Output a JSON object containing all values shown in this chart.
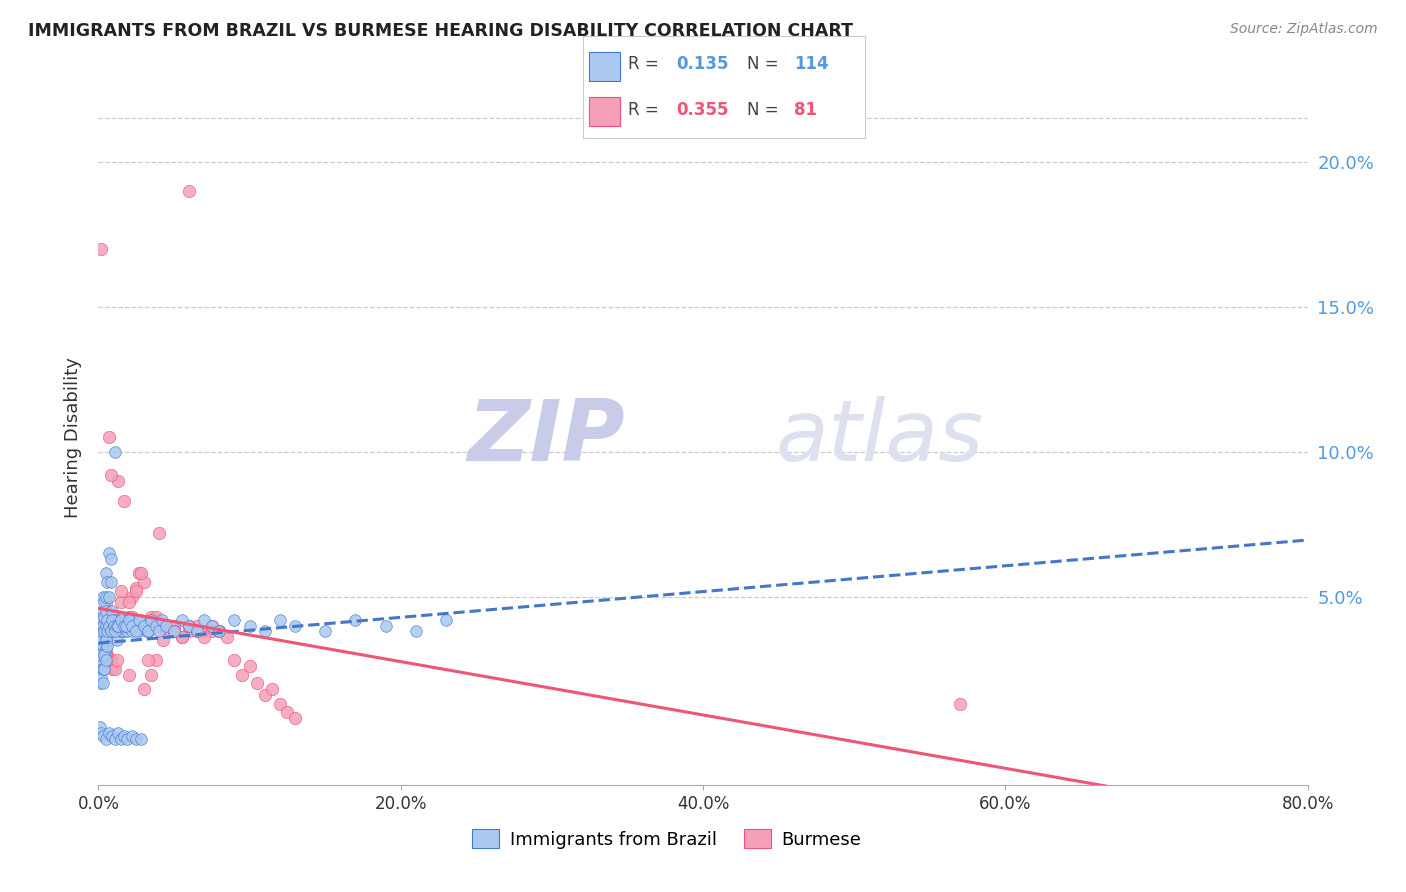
{
  "title": "IMMIGRANTS FROM BRAZIL VS BURMESE HEARING DISABILITY CORRELATION CHART",
  "source": "Source: ZipAtlas.com",
  "ylabel": "Hearing Disability",
  "watermark_zip": "ZIP",
  "watermark_atlas": "atlas",
  "xlim": [
    0.0,
    0.8
  ],
  "ylim": [
    -0.015,
    0.225
  ],
  "xtick_labels": [
    "0.0%",
    "20.0%",
    "40.0%",
    "60.0%",
    "80.0%"
  ],
  "xtick_vals": [
    0.0,
    0.2,
    0.4,
    0.6,
    0.8
  ],
  "ytick_right_labels": [
    "5.0%",
    "10.0%",
    "15.0%",
    "20.0%"
  ],
  "ytick_right_vals": [
    0.05,
    0.1,
    0.15,
    0.2
  ],
  "brazil_R": 0.135,
  "brazil_N": 114,
  "burmese_R": 0.355,
  "burmese_N": 81,
  "brazil_color": "#aac8f0",
  "burmese_color": "#f4a0b8",
  "brazil_line_color": "#4477cc",
  "burmese_line_color": "#ee5577",
  "brazil_x": [
    0.001,
    0.001,
    0.001,
    0.002,
    0.002,
    0.002,
    0.002,
    0.003,
    0.003,
    0.003,
    0.003,
    0.003,
    0.004,
    0.004,
    0.004,
    0.004,
    0.005,
    0.005,
    0.005,
    0.005,
    0.005,
    0.006,
    0.006,
    0.006,
    0.007,
    0.007,
    0.008,
    0.008,
    0.009,
    0.009,
    0.01,
    0.01,
    0.011,
    0.012,
    0.013,
    0.014,
    0.015,
    0.016,
    0.017,
    0.018,
    0.019,
    0.02,
    0.021,
    0.022,
    0.023,
    0.025,
    0.027,
    0.028,
    0.03,
    0.032,
    0.001,
    0.001,
    0.002,
    0.002,
    0.003,
    0.003,
    0.004,
    0.004,
    0.005,
    0.005,
    0.006,
    0.006,
    0.007,
    0.008,
    0.009,
    0.01,
    0.011,
    0.012,
    0.013,
    0.015,
    0.017,
    0.018,
    0.02,
    0.022,
    0.025,
    0.027,
    0.03,
    0.033,
    0.035,
    0.038,
    0.04,
    0.042,
    0.045,
    0.05,
    0.055,
    0.06,
    0.065,
    0.07,
    0.075,
    0.08,
    0.09,
    0.1,
    0.11,
    0.12,
    0.13,
    0.15,
    0.17,
    0.19,
    0.21,
    0.23,
    0.001,
    0.002,
    0.003,
    0.005,
    0.007,
    0.009,
    0.011,
    0.013,
    0.015,
    0.017,
    0.019,
    0.022,
    0.025,
    0.028
  ],
  "brazil_y": [
    0.03,
    0.035,
    0.04,
    0.025,
    0.032,
    0.038,
    0.043,
    0.028,
    0.033,
    0.04,
    0.045,
    0.05,
    0.03,
    0.038,
    0.043,
    0.048,
    0.032,
    0.04,
    0.045,
    0.05,
    0.058,
    0.035,
    0.042,
    0.055,
    0.05,
    0.065,
    0.055,
    0.063,
    0.038,
    0.045,
    0.04,
    0.042,
    0.1,
    0.035,
    0.04,
    0.038,
    0.04,
    0.038,
    0.04,
    0.042,
    0.038,
    0.042,
    0.04,
    0.038,
    0.042,
    0.04,
    0.038,
    0.042,
    0.04,
    0.038,
    0.028,
    0.02,
    0.022,
    0.03,
    0.02,
    0.025,
    0.025,
    0.03,
    0.028,
    0.035,
    0.033,
    0.038,
    0.04,
    0.038,
    0.042,
    0.04,
    0.038,
    0.04,
    0.04,
    0.042,
    0.04,
    0.04,
    0.042,
    0.04,
    0.038,
    0.042,
    0.04,
    0.038,
    0.042,
    0.04,
    0.038,
    0.042,
    0.04,
    0.038,
    0.042,
    0.04,
    0.038,
    0.042,
    0.04,
    0.038,
    0.042,
    0.04,
    0.038,
    0.042,
    0.04,
    0.038,
    0.042,
    0.04,
    0.038,
    0.042,
    0.005,
    0.003,
    0.002,
    0.001,
    0.003,
    0.002,
    0.001,
    0.003,
    0.001,
    0.002,
    0.001,
    0.002,
    0.001,
    0.001
  ],
  "burmese_x": [
    0.001,
    0.001,
    0.002,
    0.002,
    0.003,
    0.003,
    0.004,
    0.004,
    0.005,
    0.005,
    0.006,
    0.007,
    0.008,
    0.009,
    0.01,
    0.011,
    0.012,
    0.013,
    0.015,
    0.017,
    0.02,
    0.022,
    0.025,
    0.027,
    0.03,
    0.033,
    0.035,
    0.038,
    0.04,
    0.043,
    0.045,
    0.048,
    0.05,
    0.055,
    0.06,
    0.065,
    0.07,
    0.075,
    0.08,
    0.002,
    0.003,
    0.004,
    0.005,
    0.006,
    0.007,
    0.008,
    0.01,
    0.012,
    0.015,
    0.017,
    0.02,
    0.022,
    0.025,
    0.028,
    0.03,
    0.033,
    0.035,
    0.038,
    0.04,
    0.045,
    0.05,
    0.055,
    0.06,
    0.065,
    0.07,
    0.075,
    0.08,
    0.085,
    0.09,
    0.095,
    0.1,
    0.105,
    0.11,
    0.115,
    0.12,
    0.125,
    0.13,
    0.06,
    0.57,
    0.002,
    0.02
  ],
  "burmese_y": [
    0.03,
    0.038,
    0.025,
    0.04,
    0.035,
    0.042,
    0.038,
    0.03,
    0.043,
    0.048,
    0.03,
    0.038,
    0.028,
    0.025,
    0.043,
    0.025,
    0.04,
    0.09,
    0.048,
    0.083,
    0.043,
    0.05,
    0.053,
    0.058,
    0.055,
    0.038,
    0.043,
    0.028,
    0.04,
    0.035,
    0.038,
    0.038,
    0.04,
    0.036,
    0.038,
    0.04,
    0.038,
    0.038,
    0.038,
    0.025,
    0.028,
    0.033,
    0.03,
    0.028,
    0.105,
    0.092,
    0.043,
    0.028,
    0.052,
    0.038,
    0.048,
    0.043,
    0.052,
    0.058,
    0.018,
    0.028,
    0.023,
    0.043,
    0.072,
    0.038,
    0.038,
    0.036,
    0.04,
    0.038,
    0.036,
    0.04,
    0.038,
    0.036,
    0.028,
    0.023,
    0.026,
    0.02,
    0.016,
    0.018,
    0.013,
    0.01,
    0.008,
    0.19,
    0.013,
    0.17,
    0.023
  ]
}
